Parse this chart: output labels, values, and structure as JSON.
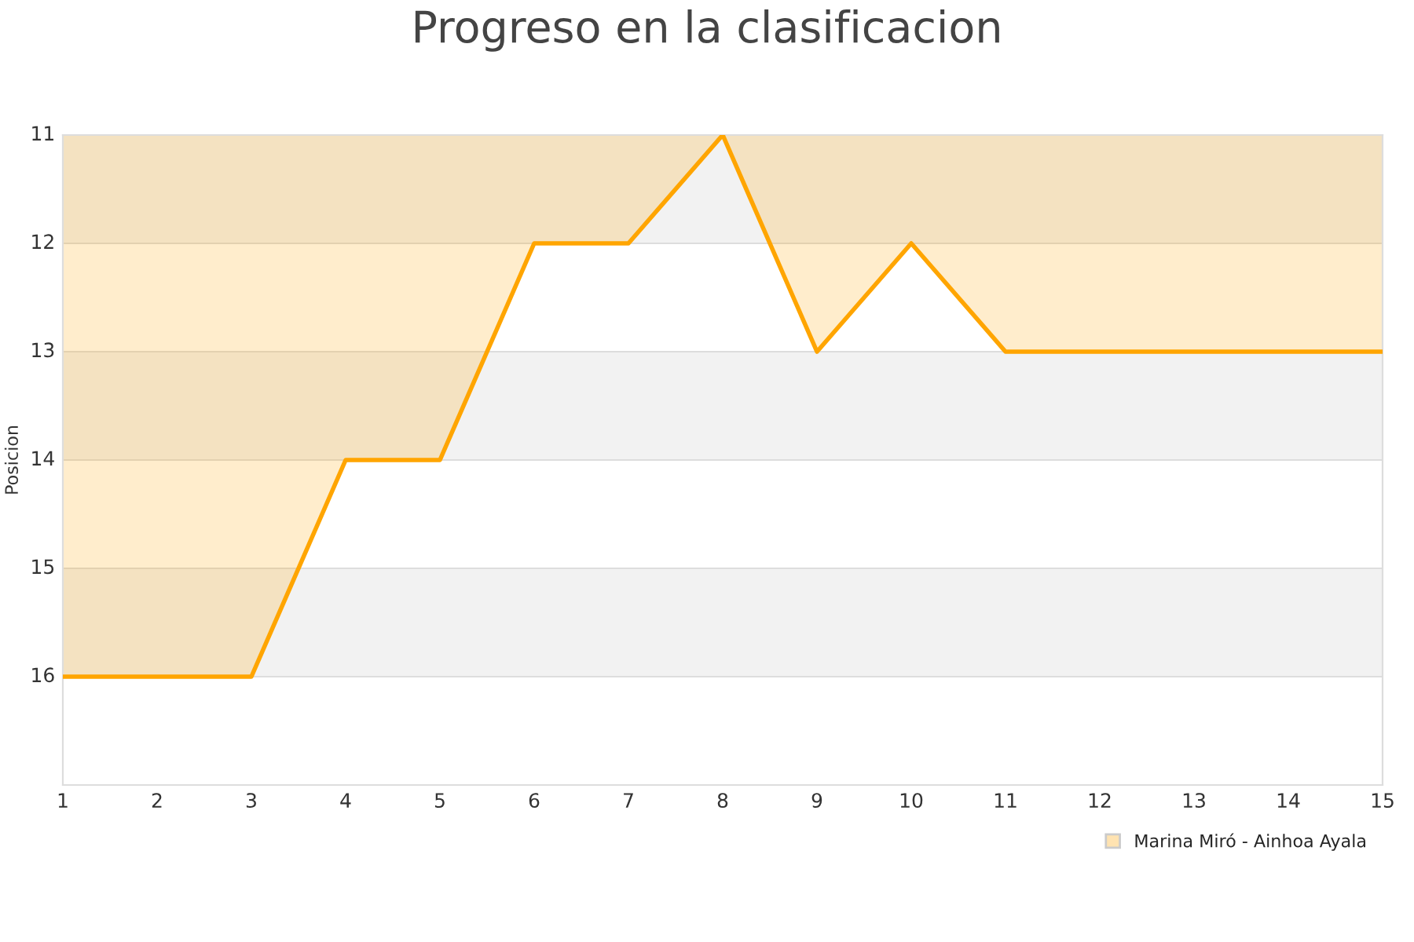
{
  "chart_data": {
    "type": "area",
    "title": "Progreso en la clasificacion",
    "ylabel": "Posicion",
    "x": [
      1,
      2,
      3,
      4,
      5,
      6,
      7,
      8,
      9,
      10,
      11,
      12,
      13,
      14,
      15
    ],
    "series": [
      {
        "name": "Marina Miró - Ainhoa Ayala",
        "color": "#ffa500",
        "values": [
          16,
          16,
          16,
          14,
          14,
          12,
          12,
          11,
          13,
          12,
          13,
          13,
          13,
          13,
          13
        ]
      }
    ],
    "xlim": [
      1,
      15
    ],
    "xticks": [
      1,
      2,
      3,
      4,
      5,
      6,
      7,
      8,
      9,
      10,
      11,
      12,
      13,
      14,
      15
    ],
    "ylim": [
      17,
      11
    ],
    "yticks": [
      11,
      12,
      13,
      14,
      15,
      16
    ],
    "bands": [
      {
        "axis": "y",
        "from": 11,
        "to": 12,
        "color": "#f2f2f2"
      },
      {
        "axis": "y",
        "from": 13,
        "to": 14,
        "color": "#f2f2f2"
      },
      {
        "axis": "y",
        "from": 15,
        "to": 16,
        "color": "#f2f2f2"
      }
    ],
    "grid": "y",
    "legend": "bottom right",
    "marker": "none",
    "line_style": "solid"
  }
}
